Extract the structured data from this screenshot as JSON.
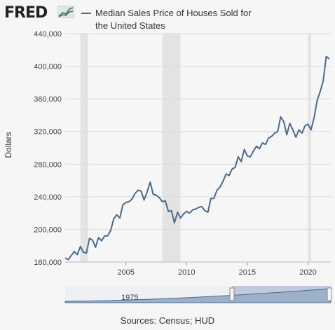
{
  "brand": {
    "logo_text": "FRED"
  },
  "legend": {
    "label": "Median Sales Price of Houses Sold for the United States"
  },
  "navigator": {
    "label": "1975"
  },
  "source": "Sources: Census; HUD",
  "colors": {
    "line": "#4a6b8c",
    "recession": "#e3e3e3",
    "grid": "#dcdcdc"
  },
  "chart_data": {
    "type": "line",
    "ylabel": "Dollars",
    "ylim": [
      160000,
      440000
    ],
    "xlim": [
      2000.0,
      2021.875
    ],
    "yticks": [
      160000,
      200000,
      240000,
      280000,
      320000,
      360000,
      400000,
      440000
    ],
    "yticklabels": [
      "160,000",
      "200,000",
      "240,000",
      "280,000",
      "320,000",
      "360,000",
      "400,000",
      "440,000"
    ],
    "xticks": [
      2005,
      2010,
      2015,
      2020
    ],
    "xticklabels": [
      "2005",
      "2010",
      "2015",
      "2020"
    ],
    "recessions": [
      [
        2001.25,
        2001.875
      ],
      [
        2008.0,
        2009.5
      ],
      [
        2020.0,
        2020.25
      ]
    ],
    "series": [
      {
        "name": "Median Sales Price of Houses Sold for the United States",
        "x": [
          "2000-Q1",
          "2000-Q2",
          "2000-Q3",
          "2000-Q4",
          "2001-Q1",
          "2001-Q2",
          "2001-Q3",
          "2001-Q4",
          "2002-Q1",
          "2002-Q2",
          "2002-Q3",
          "2002-Q4",
          "2003-Q1",
          "2003-Q2",
          "2003-Q3",
          "2003-Q4",
          "2004-Q1",
          "2004-Q2",
          "2004-Q3",
          "2004-Q4",
          "2005-Q1",
          "2005-Q2",
          "2005-Q3",
          "2005-Q4",
          "2006-Q1",
          "2006-Q2",
          "2006-Q3",
          "2006-Q4",
          "2007-Q1",
          "2007-Q2",
          "2007-Q3",
          "2007-Q4",
          "2008-Q1",
          "2008-Q2",
          "2008-Q3",
          "2008-Q4",
          "2009-Q1",
          "2009-Q2",
          "2009-Q3",
          "2009-Q4",
          "2010-Q1",
          "2010-Q2",
          "2010-Q3",
          "2010-Q4",
          "2011-Q1",
          "2011-Q2",
          "2011-Q3",
          "2011-Q4",
          "2012-Q1",
          "2012-Q2",
          "2012-Q3",
          "2012-Q4",
          "2013-Q1",
          "2013-Q2",
          "2013-Q3",
          "2013-Q4",
          "2014-Q1",
          "2014-Q2",
          "2014-Q3",
          "2014-Q4",
          "2015-Q1",
          "2015-Q2",
          "2015-Q3",
          "2015-Q4",
          "2016-Q1",
          "2016-Q2",
          "2016-Q3",
          "2016-Q4",
          "2017-Q1",
          "2017-Q2",
          "2017-Q3",
          "2017-Q4",
          "2018-Q1",
          "2018-Q2",
          "2018-Q3",
          "2018-Q4",
          "2019-Q1",
          "2019-Q2",
          "2019-Q3",
          "2019-Q4",
          "2020-Q1",
          "2020-Q2",
          "2020-Q3",
          "2020-Q4",
          "2021-Q1",
          "2021-Q2",
          "2021-Q3",
          "2021-Q4"
        ],
        "values": [
          165000,
          163000,
          168000,
          173000,
          169000,
          179000,
          172000,
          171000,
          189000,
          187000,
          178000,
          190000,
          186000,
          192000,
          192000,
          199000,
          213000,
          218000,
          214000,
          230000,
          233000,
          234000,
          237000,
          244000,
          248000,
          247000,
          236000,
          246000,
          258000,
          243000,
          242000,
          239000,
          234000,
          235000,
          222000,
          223000,
          208000,
          221000,
          214000,
          219000,
          222000,
          220000,
          224000,
          225000,
          227000,
          228000,
          223000,
          221000,
          238000,
          238000,
          248000,
          252000,
          259000,
          268000,
          266000,
          274000,
          276000,
          289000,
          283000,
          298000,
          290000,
          289000,
          296000,
          302000,
          299000,
          306000,
          304000,
          312000,
          314000,
          318000,
          320000,
          338000,
          332000,
          316000,
          330000,
          322000,
          313000,
          322000,
          318000,
          327000,
          329000,
          322000,
          337000,
          358000,
          369000,
          382000,
          412000,
          409000
        ]
      }
    ]
  }
}
